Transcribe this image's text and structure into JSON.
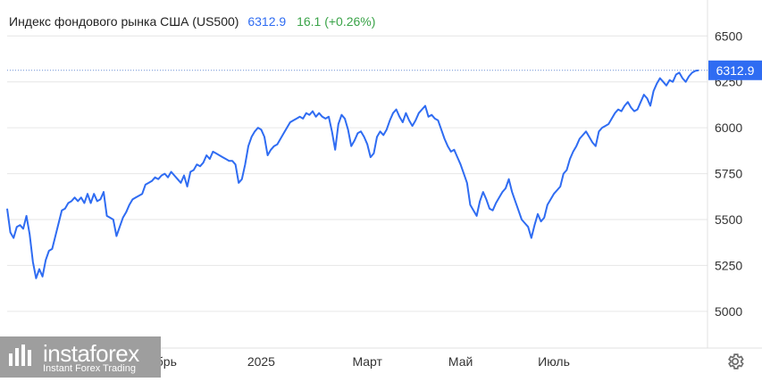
{
  "header": {
    "name": "Индекс фондового рынка США (US500)",
    "last": "6312.9",
    "change": "16.1 (+0.26%)"
  },
  "colors": {
    "line": "#2f6cf2",
    "grid": "#e6e6e6",
    "axis_text": "#333333",
    "price_badge": "#2f6cf2",
    "change_text": "#3aa348"
  },
  "logo": {
    "word": "instaforex",
    "sub": "Instant Forex Trading"
  },
  "icons": {
    "settings": "gear-icon"
  },
  "chart_data": {
    "type": "line",
    "title": "",
    "xlabel": "",
    "ylabel": "",
    "y_ticks": [
      5000,
      5250,
      5500,
      5750,
      6000,
      6250,
      6500
    ],
    "ylim": [
      4800,
      6550
    ],
    "x_tick_labels": [
      "Ноябрь",
      "2025",
      "Март",
      "Май",
      "Июль"
    ],
    "x_tick_index": [
      46,
      79,
      112,
      141,
      170
    ],
    "last_price": 6312.9,
    "last_price_label": "6312.9",
    "grid": true,
    "series": [
      {
        "values": [
          5560,
          5430,
          5400,
          5460,
          5470,
          5450,
          5520,
          5420,
          5270,
          5180,
          5230,
          5190,
          5280,
          5330,
          5340,
          5410,
          5480,
          5550,
          5560,
          5590,
          5600,
          5620,
          5600,
          5620,
          5590,
          5640,
          5590,
          5640,
          5600,
          5610,
          5650,
          5520,
          5510,
          5500,
          5410,
          5460,
          5510,
          5540,
          5580,
          5610,
          5620,
          5630,
          5640,
          5690,
          5700,
          5710,
          5730,
          5720,
          5740,
          5750,
          5730,
          5760,
          5740,
          5720,
          5700,
          5740,
          5680,
          5760,
          5770,
          5800,
          5790,
          5810,
          5850,
          5830,
          5870,
          5860,
          5850,
          5840,
          5830,
          5820,
          5820,
          5800,
          5700,
          5720,
          5800,
          5900,
          5950,
          5980,
          6000,
          5990,
          5950,
          5850,
          5880,
          5900,
          5910,
          5940,
          5970,
          6000,
          6030,
          6040,
          6050,
          6060,
          6050,
          6080,
          6070,
          6090,
          6060,
          6080,
          6060,
          6050,
          6060,
          5980,
          5880,
          6020,
          6070,
          6050,
          5990,
          5900,
          5930,
          5970,
          5980,
          5950,
          5910,
          5840,
          5860,
          5950,
          5980,
          5960,
          5990,
          6040,
          6080,
          6100,
          6060,
          6030,
          6080,
          6040,
          6010,
          6040,
          6080,
          6100,
          6120,
          6060,
          6070,
          6050,
          6040,
          5990,
          5940,
          5900,
          5870,
          5880,
          5840,
          5800,
          5750,
          5700,
          5580,
          5550,
          5520,
          5600,
          5650,
          5610,
          5560,
          5550,
          5590,
          5620,
          5650,
          5670,
          5720,
          5650,
          5600,
          5550,
          5500,
          5480,
          5460,
          5400,
          5470,
          5530,
          5490,
          5510,
          5580,
          5610,
          5640,
          5660,
          5680,
          5750,
          5770,
          5830,
          5870,
          5900,
          5940,
          5960,
          5980,
          5950,
          5920,
          5900,
          5980,
          6000,
          6010,
          6020,
          6050,
          6080,
          6100,
          6090,
          6120,
          6140,
          6110,
          6090,
          6100,
          6140,
          6180,
          6160,
          6120,
          6200,
          6240,
          6270,
          6250,
          6230,
          6260,
          6250,
          6290,
          6300,
          6270,
          6250,
          6280,
          6300,
          6310,
          6312.9
        ]
      }
    ]
  }
}
